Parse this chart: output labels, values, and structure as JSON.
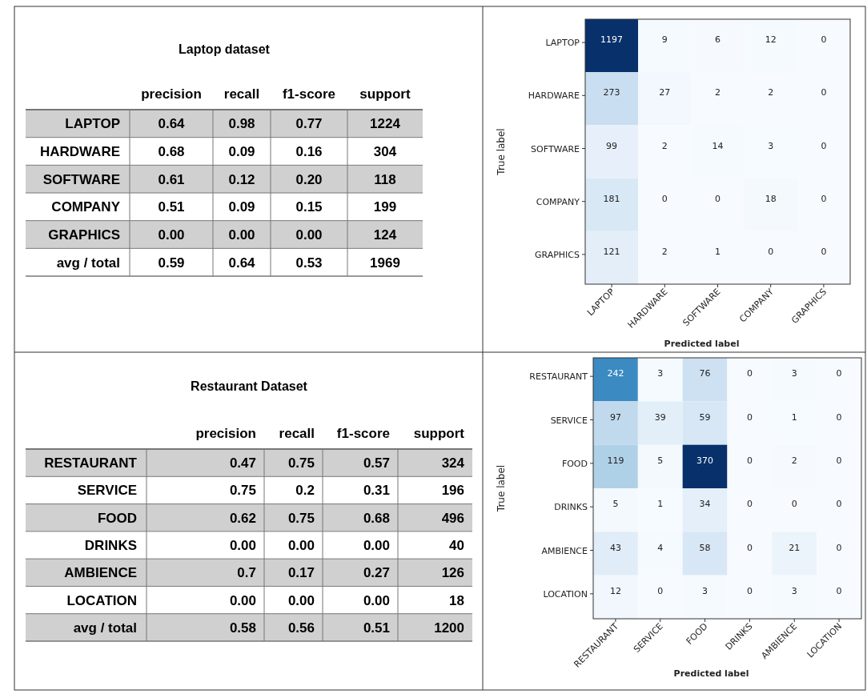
{
  "chart_data": [
    {
      "type": "heatmap",
      "title": "Laptop dataset",
      "data_labels": true,
      "categories": [
        "precision",
        "recall",
        "f1-score",
        "support"
      ],
      "y_categories": [
        "LAPTOP",
        "HARDWARE",
        "SOFTWARE",
        "COMPANY",
        "GRAPHICS",
        "avg / total"
      ],
      "cells": [
        [
          0.64,
          0.98,
          0.77,
          1224
        ],
        [
          0.68,
          0.09,
          0.16,
          304
        ],
        [
          0.61,
          0.12,
          0.2,
          118
        ],
        [
          0.51,
          0.09,
          0.15,
          199
        ],
        [
          0,
          0,
          0,
          124
        ],
        [
          0.59,
          0.64,
          0.53,
          1969
        ]
      ],
      "cell_labels": [
        [
          "0.64",
          "0.98",
          "0.77",
          "1224"
        ],
        [
          "0.68",
          "0.09",
          "0.16",
          "304"
        ],
        [
          "0.61",
          "0.12",
          "0.20",
          "118"
        ],
        [
          "0.51",
          "0.09",
          "0.15",
          "199"
        ],
        [
          "0.00",
          "0.00",
          "0.00",
          "124"
        ],
        [
          "0.59",
          "0.64",
          "0.53",
          "1969"
        ]
      ]
    },
    {
      "type": "heatmap",
      "xlabel": "Predicted label",
      "ylabel": "True label",
      "categories": [
        "LAPTOP",
        "HARDWARE",
        "SOFTWARE",
        "COMPANY",
        "GRAPHICS"
      ],
      "y_categories": [
        "LAPTOP",
        "HARDWARE",
        "SOFTWARE",
        "COMPANY",
        "GRAPHICS"
      ],
      "data_labels": true,
      "cells": [
        [
          1197,
          9,
          6,
          12,
          0
        ],
        [
          273,
          27,
          2,
          2,
          0
        ],
        [
          99,
          2,
          14,
          3,
          0
        ],
        [
          181,
          0,
          0,
          18,
          0
        ],
        [
          121,
          2,
          1,
          0,
          0
        ]
      ]
    },
    {
      "type": "heatmap",
      "title": "Restaurant Dataset",
      "data_labels": true,
      "categories": [
        "precision",
        "recall",
        "f1-score",
        "support"
      ],
      "y_categories": [
        "RESTAURANT",
        "SERVICE",
        "FOOD",
        "DRINKS",
        "AMBIENCE",
        "LOCATION",
        "avg / total"
      ],
      "cells": [
        [
          0.47,
          0.75,
          0.57,
          324
        ],
        [
          0.75,
          0.2,
          0.31,
          196
        ],
        [
          0.62,
          0.75,
          0.68,
          496
        ],
        [
          0,
          0,
          0,
          40
        ],
        [
          0.7,
          0.17,
          0.27,
          126
        ],
        [
          0,
          0,
          0,
          18
        ],
        [
          0.58,
          0.56,
          0.51,
          1200
        ]
      ],
      "cell_labels": [
        [
          "0.47",
          "0.75",
          "0.57",
          "324"
        ],
        [
          "0.75",
          "0.2",
          "0.31",
          "196"
        ],
        [
          "0.62",
          "0.75",
          "0.68",
          "496"
        ],
        [
          "0.00",
          "0.00",
          "0.00",
          "40"
        ],
        [
          "0.7",
          "0.17",
          "0.27",
          "126"
        ],
        [
          "0.00",
          "0.00",
          "0.00",
          "18"
        ],
        [
          "0.58",
          "0.56",
          "0.51",
          "1200"
        ]
      ]
    },
    {
      "type": "heatmap",
      "xlabel": "Predicted label",
      "ylabel": "True label",
      "categories": [
        "RESTAURANT",
        "SERVICE",
        "FOOD",
        "DRINKS",
        "AMBIENCE",
        "LOCATION"
      ],
      "y_categories": [
        "RESTAURANT",
        "SERVICE",
        "FOOD",
        "DRINKS",
        "AMBIENCE",
        "LOCATION"
      ],
      "data_labels": true,
      "cells": [
        [
          242,
          3,
          76,
          0,
          3,
          0
        ],
        [
          97,
          39,
          59,
          0,
          1,
          0
        ],
        [
          119,
          5,
          370,
          0,
          2,
          0
        ],
        [
          5,
          1,
          34,
          0,
          0,
          0
        ],
        [
          43,
          4,
          58,
          0,
          21,
          0
        ],
        [
          12,
          0,
          3,
          0,
          3,
          0
        ]
      ]
    }
  ]
}
